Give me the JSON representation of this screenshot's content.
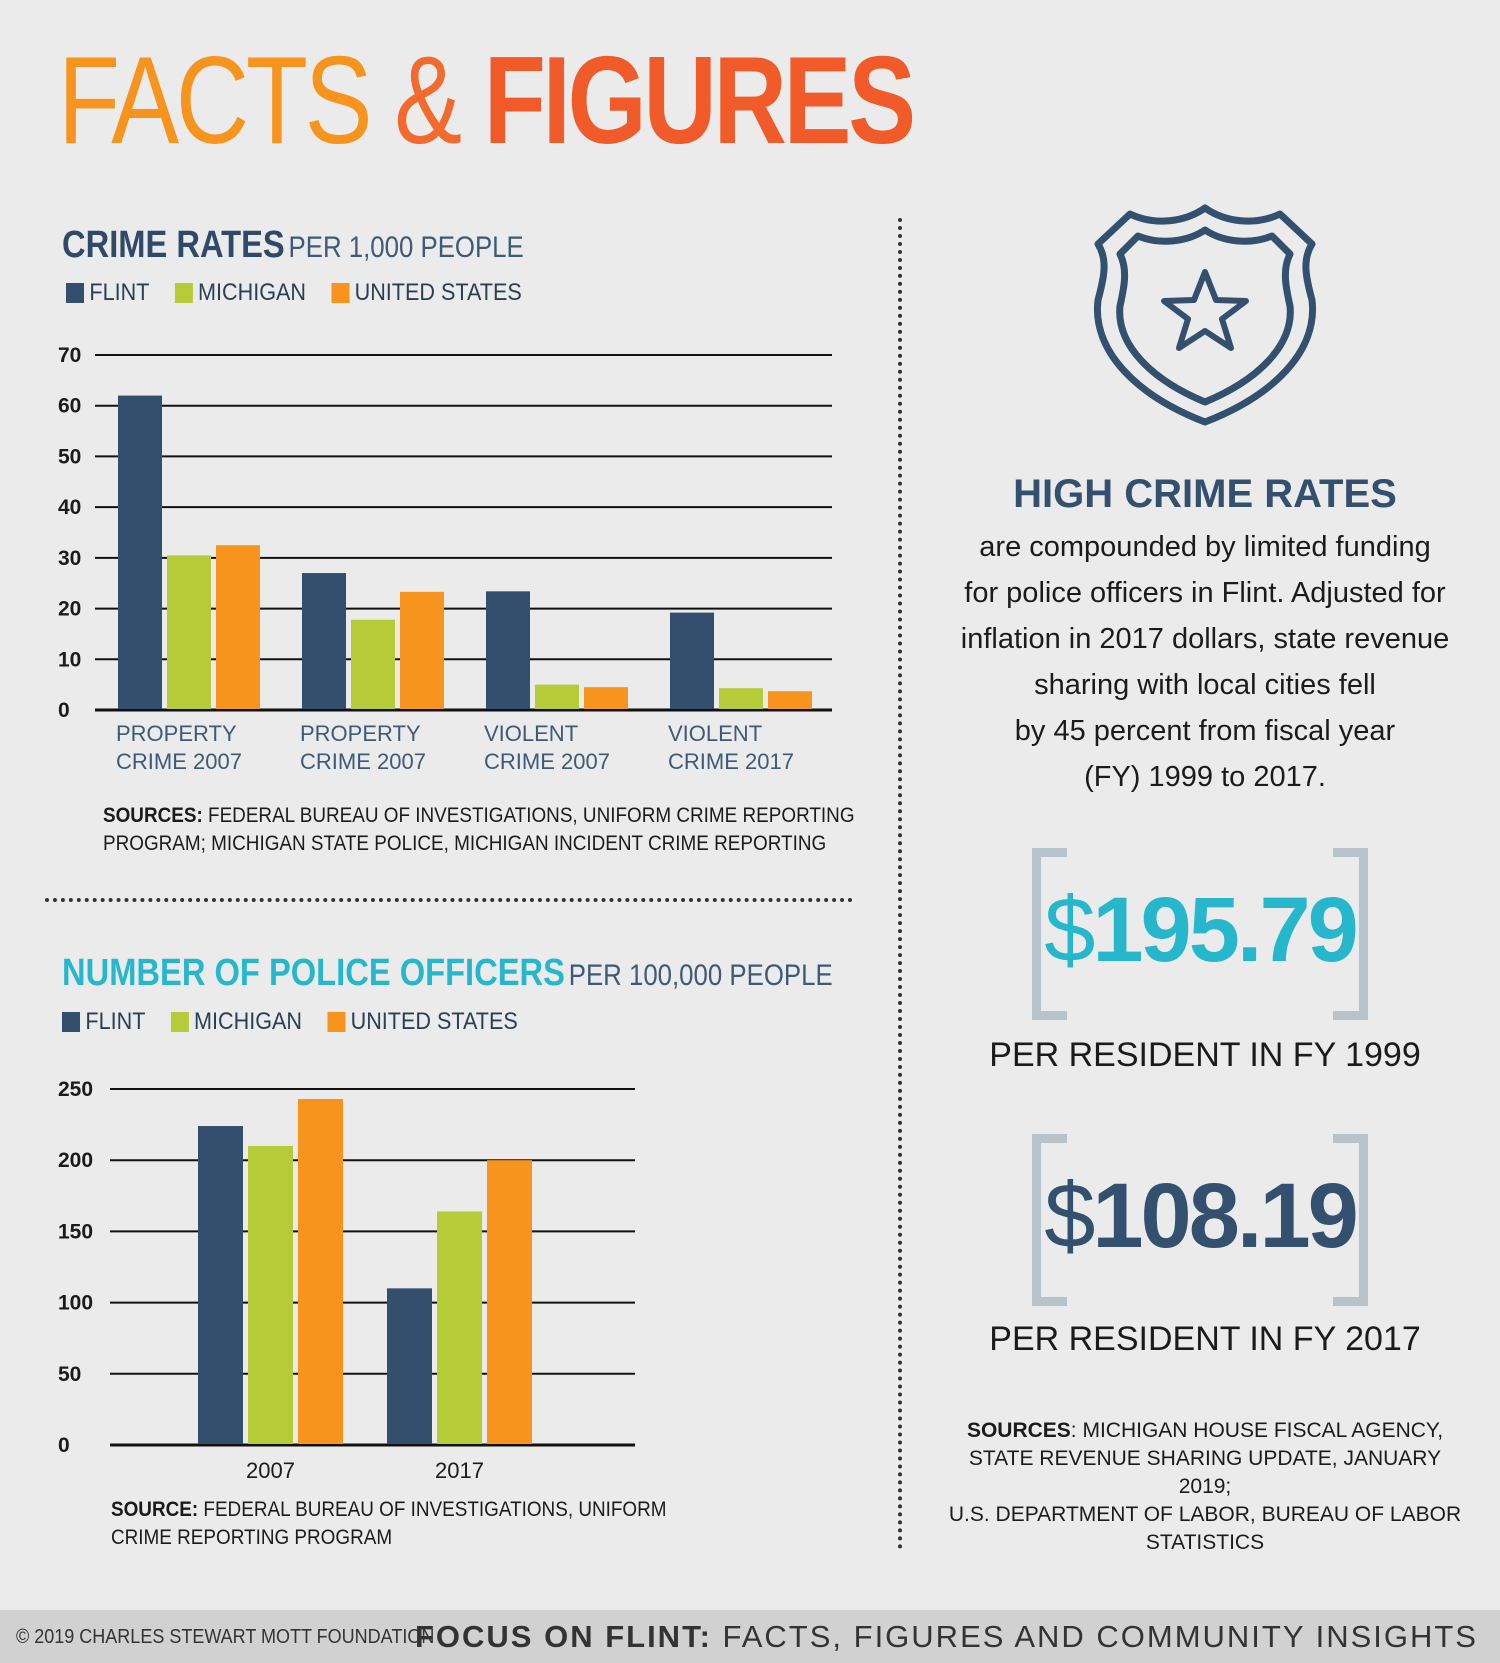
{
  "header": {
    "title_part1": "FACTS",
    "title_amp": "&",
    "title_part2": "FIGURES"
  },
  "colors": {
    "flint": "#344f6d",
    "michigan": "#b5cb37",
    "united_states": "#f7941d",
    "title_crime": "#2f4a68",
    "title_police": "#27b7cc",
    "amount_1999": "#27b7cc",
    "amount_2017": "#34506f"
  },
  "crime_section": {
    "title": "CRIME RATES",
    "subtitle": "PER 1,000 PEOPLE",
    "legend": [
      "FLINT",
      "MICHIGAN",
      "UNITED STATES"
    ],
    "sources_label": "SOURCES:",
    "sources_line1": " FEDERAL BUREAU OF INVESTIGATIONS, UNIFORM CRIME REPORTING",
    "sources_line2": "PROGRAM; MICHIGAN STATE POLICE, MICHIGAN INCIDENT CRIME REPORTING"
  },
  "police_section": {
    "title": "NUMBER OF POLICE OFFICERS",
    "subtitle": "PER 100,000 PEOPLE",
    "legend": [
      "FLINT",
      "MICHIGAN",
      "UNITED STATES"
    ],
    "source_label": "SOURCE:",
    "source_line1": " FEDERAL BUREAU OF INVESTIGATIONS, UNIFORM",
    "source_line2": "CRIME REPORTING PROGRAM"
  },
  "chart_data": [
    {
      "type": "bar",
      "title": "CRIME RATES PER 1,000 PEOPLE",
      "categories": [
        [
          "PROPERTY",
          "CRIME 2007"
        ],
        [
          "PROPERTY",
          "CRIME 2007"
        ],
        [
          "VIOLENT",
          "CRIME 2007"
        ],
        [
          "VIOLENT",
          "CRIME 2017"
        ]
      ],
      "series": [
        {
          "name": "FLINT",
          "values": [
            62,
            27,
            23.4,
            19.2
          ]
        },
        {
          "name": "MICHIGAN",
          "values": [
            30.5,
            17.8,
            5,
            4.3
          ]
        },
        {
          "name": "UNITED STATES",
          "values": [
            32.5,
            23.3,
            4.5,
            3.7
          ]
        }
      ],
      "yticks": [
        "0",
        "10",
        "20",
        "30",
        "40",
        "50",
        "60",
        "70"
      ],
      "ylim": [
        0,
        70
      ],
      "grid": true,
      "legend": "top-left"
    },
    {
      "type": "bar",
      "title": "NUMBER OF POLICE OFFICERS PER 100,000 PEOPLE",
      "categories": [
        "2007",
        "2017"
      ],
      "series": [
        {
          "name": "FLINT",
          "values": [
            224,
            110
          ]
        },
        {
          "name": "MICHIGAN",
          "values": [
            210,
            164
          ]
        },
        {
          "name": "UNITED STATES",
          "values": [
            243,
            200
          ]
        }
      ],
      "yticks": [
        "0",
        "50",
        "100",
        "150",
        "200",
        "250"
      ],
      "ylim": [
        0,
        250
      ],
      "grid": true,
      "legend": "top-left"
    }
  ],
  "right_panel": {
    "badge_icon": "police-badge-icon",
    "heading": "HIGH CRIME RATES",
    "body": [
      "are compounded by limited funding",
      "for police officers in Flint. Adjusted for",
      "inflation in 2017 dollars, state revenue",
      "sharing with local cities fell",
      "by 45 percent from fiscal year",
      "(FY) 1999 to 2017."
    ],
    "amount_1999_symbol": "$",
    "amount_1999_value": "195.79",
    "label_1999": "PER RESIDENT IN FY 1999",
    "amount_2017_symbol": "$",
    "amount_2017_value": "108.19",
    "label_2017": "PER RESIDENT IN FY 2017",
    "sources_label": "SOURCES",
    "sources_line1": ": MICHIGAN HOUSE FISCAL AGENCY,",
    "sources_line2": "STATE REVENUE SHARING UPDATE, JANUARY 2019;",
    "sources_line3": "U.S. DEPARTMENT OF LABOR, BUREAU OF LABOR STATISTICS"
  },
  "footer": {
    "copyright": "© 2019 CHARLES STEWART MOTT FOUNDATION",
    "brand_bold": "FOCUS ON FLINT:",
    "brand_rest": " FACTS, FIGURES AND COMMUNITY INSIGHTS"
  }
}
